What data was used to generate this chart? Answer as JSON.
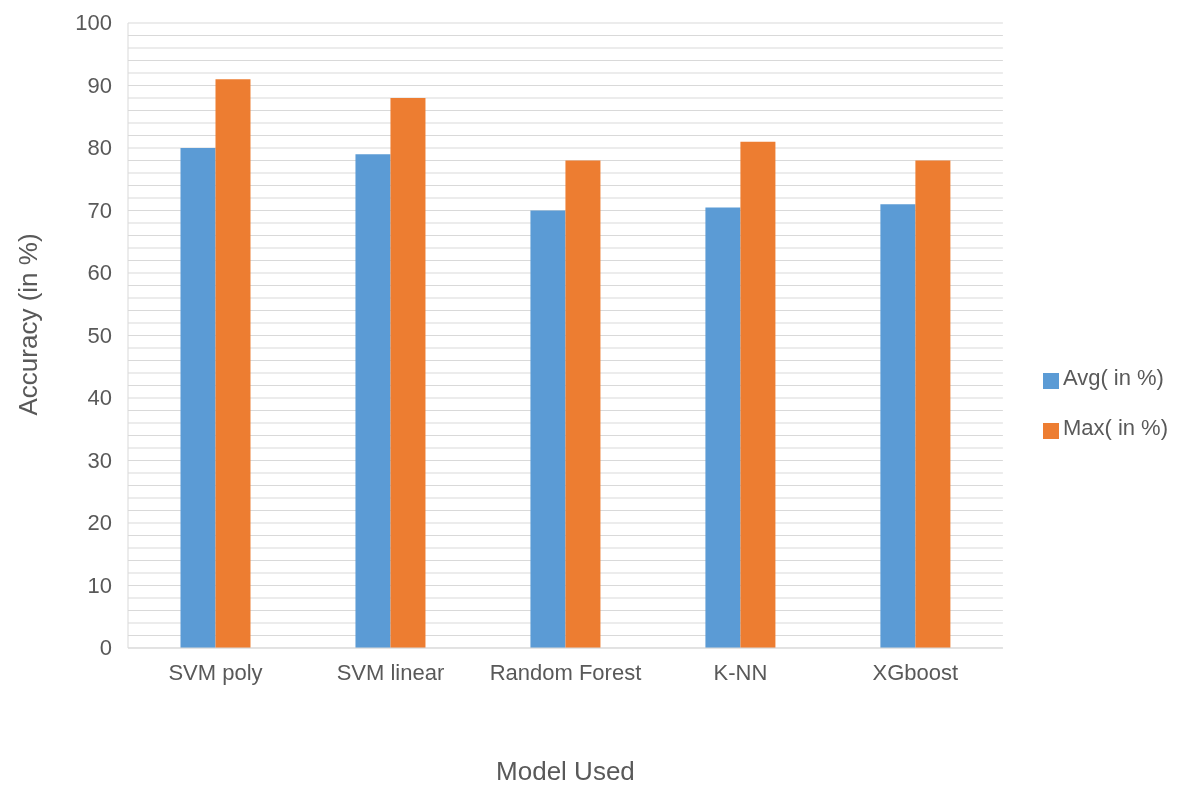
{
  "chart_data": {
    "type": "bar",
    "xlabel": "Model Used",
    "ylabel": "Accuracy (in %)",
    "categories": [
      "SVM poly",
      "SVM linear",
      "Random Forest",
      "K-NN",
      "XGboost"
    ],
    "series": [
      {
        "name": "Avg( in %)",
        "color": "#5b9bd5",
        "values": [
          80,
          79,
          70,
          70.5,
          71
        ]
      },
      {
        "name": "Max( in %)",
        "color": "#ed7d31",
        "values": [
          91,
          88,
          78,
          81,
          78
        ]
      }
    ],
    "ylim": [
      0,
      100
    ],
    "yticks": [
      0,
      {
        "value": 2,
        "label": null
      },
      {
        "value": 4,
        "label": null
      },
      {
        "value": 6,
        "label": null
      },
      {
        "value": 8,
        "label": null
      },
      10,
      {
        "value": 12,
        "label": null
      },
      {
        "value": 14,
        "label": null
      },
      {
        "value": 16,
        "label": null
      },
      {
        "value": 18,
        "label": null
      },
      20,
      {
        "value": 22,
        "label": null
      },
      {
        "value": 24,
        "label": null
      },
      {
        "value": 26,
        "label": null
      },
      {
        "value": 28,
        "label": null
      },
      30,
      {
        "value": 32,
        "label": null
      },
      {
        "value": 34,
        "label": null
      },
      {
        "value": 36,
        "label": null
      },
      {
        "value": 38,
        "label": null
      },
      40,
      {
        "value": 42,
        "label": null
      },
      {
        "value": 44,
        "label": null
      },
      {
        "value": 46,
        "label": null
      },
      {
        "value": 48,
        "label": null
      },
      50,
      {
        "value": 52,
        "label": null
      },
      {
        "value": 54,
        "label": null
      },
      {
        "value": 56,
        "label": null
      },
      {
        "value": 58,
        "label": null
      },
      60,
      {
        "value": 62,
        "label": null
      },
      {
        "value": 64,
        "label": null
      },
      {
        "value": 66,
        "label": null
      },
      {
        "value": 68,
        "label": null
      },
      70,
      {
        "value": 72,
        "label": null
      },
      {
        "value": 74,
        "label": null
      },
      {
        "value": 76,
        "label": null
      },
      {
        "value": 78,
        "label": null
      },
      80,
      {
        "value": 82,
        "label": null
      },
      {
        "value": 84,
        "label": null
      },
      {
        "value": 86,
        "label": null
      },
      {
        "value": 88,
        "label": null
      },
      90,
      {
        "value": 92,
        "label": null
      },
      {
        "value": 94,
        "label": null
      },
      {
        "value": 96,
        "label": null
      },
      {
        "value": 98,
        "label": null
      },
      100
    ],
    "grid": "y",
    "legend": "right"
  }
}
